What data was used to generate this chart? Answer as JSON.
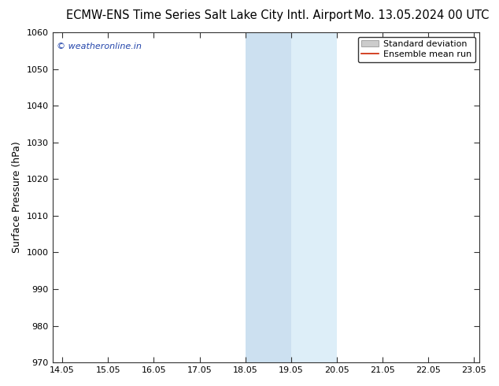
{
  "title_left": "ECMW-ENS Time Series Salt Lake City Intl. Airport",
  "title_right": "Mo. 13.05.2024 00 UTC",
  "ylabel": "Surface Pressure (hPa)",
  "ylim": [
    970,
    1060
  ],
  "yticks": [
    970,
    980,
    990,
    1000,
    1010,
    1020,
    1030,
    1040,
    1050,
    1060
  ],
  "xlim_start": 13.833,
  "xlim_end": 23.167,
  "xticks": [
    14.05,
    15.05,
    16.05,
    17.05,
    18.05,
    19.05,
    20.05,
    21.05,
    22.05,
    23.05
  ],
  "xticklabels": [
    "14.05",
    "15.05",
    "16.05",
    "17.05",
    "18.05",
    "19.05",
    "20.05",
    "21.05",
    "22.05",
    "23.05"
  ],
  "shade1_x_start": 18.05,
  "shade1_x_end": 19.05,
  "shade1_color": "#cce0f0",
  "shade2_x_start": 19.05,
  "shade2_x_end": 20.05,
  "shade2_color": "#ddeef8",
  "bg_color": "#ffffff",
  "plot_bg_color": "#ffffff",
  "watermark_text": "© weatheronline.in",
  "watermark_color": "#2244aa",
  "legend_std_label": "Standard deviation",
  "legend_mean_label": "Ensemble mean run",
  "legend_std_facecolor": "#cccccc",
  "legend_std_edgecolor": "#888888",
  "legend_mean_color": "#cc2200",
  "title_fontsize": 10.5,
  "axis_label_fontsize": 9,
  "tick_fontsize": 8,
  "watermark_fontsize": 8,
  "border_color": "#333333",
  "grid_color": "#dddddd"
}
